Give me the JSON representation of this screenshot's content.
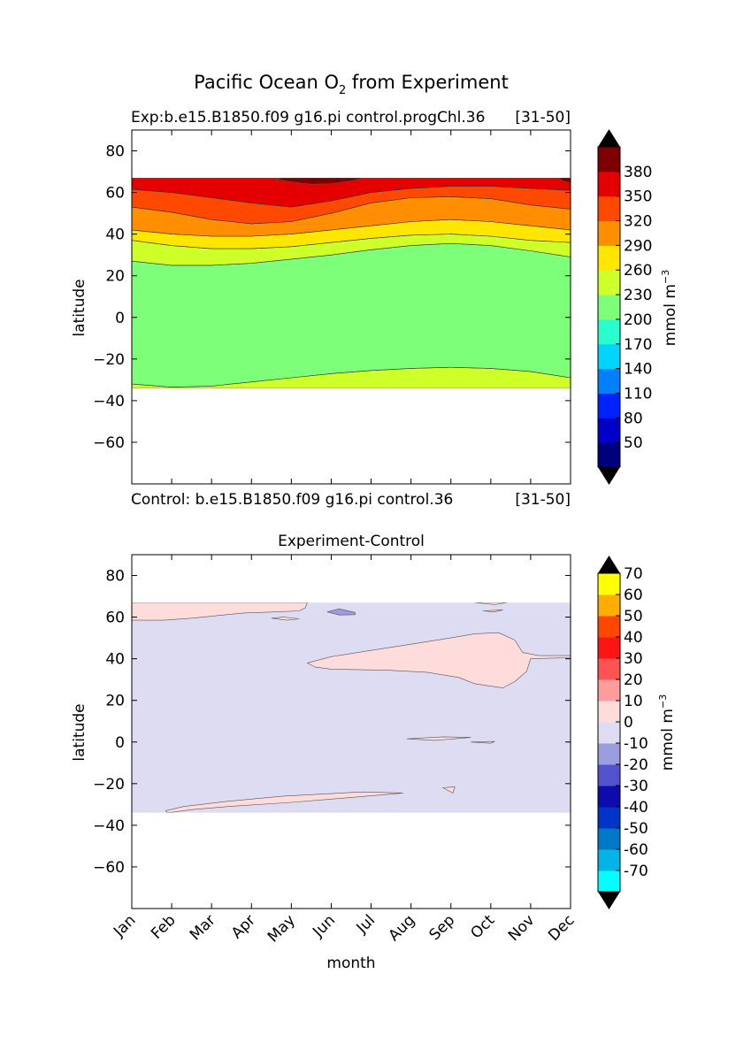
{
  "figure": {
    "title_main": "Pacific Ocean O",
    "title_sub": "2",
    "title_rest": " from Experiment"
  },
  "chart_data": [
    {
      "type": "contourf",
      "title": "Exp:b.e15.B1850.f09 g16.pi control.progChl.36",
      "title_right": "[31-50]",
      "subtitle_below": "Control: b.e15.B1850.f09 g16.pi control.36",
      "subtitle_below_right": "[31-50]",
      "ylabel": "latitude",
      "xlabel": "",
      "xlim": [
        0,
        11
      ],
      "ylim": [
        -80,
        90
      ],
      "yticks": [
        -60,
        -40,
        -20,
        0,
        20,
        40,
        60,
        80
      ],
      "data_lat_range": [
        -34,
        67
      ],
      "colorbar": {
        "label": "mmol m",
        "label_sup": "−3",
        "levels": [
          20,
          50,
          80,
          110,
          140,
          170,
          200,
          230,
          260,
          290,
          320,
          350,
          380,
          410
        ],
        "tick_labels": [
          "50",
          "80",
          "110",
          "140",
          "170",
          "200",
          "230",
          "260",
          "290",
          "320",
          "350",
          "380"
        ],
        "colors": [
          "#00007f",
          "#0000c8",
          "#0022ff",
          "#0080ff",
          "#00d4ff",
          "#29ffce",
          "#7dff7a",
          "#ceff29",
          "#ffe600",
          "#ff8f00",
          "#ff4800",
          "#e50000",
          "#7f0000"
        ],
        "extend_low_color": "#000000",
        "extend_high_color": "#000000"
      },
      "regions": [
        {
          "band": "230",
          "lower": [
            -34,
            -34,
            -34,
            -34,
            -34,
            -34,
            -34,
            -34,
            -34,
            -34,
            -34,
            -34
          ],
          "upper": [
            -32,
            -33.5,
            -33,
            -31,
            -29,
            -27,
            -25.5,
            -24.5,
            -24,
            -24.5,
            -26,
            -29
          ]
        },
        {
          "band": "200",
          "lower": [
            -32,
            -33.5,
            -33,
            -31,
            -29,
            -27,
            -25.5,
            -24.5,
            -24,
            -24.5,
            -26,
            -29
          ],
          "upper": [
            27,
            25,
            25,
            26,
            28,
            30,
            32.5,
            34.5,
            35.5,
            34.5,
            32,
            29
          ]
        },
        {
          "band": "230",
          "lower": [
            27,
            25,
            25,
            26,
            28,
            30,
            32.5,
            34.5,
            35.5,
            34.5,
            32,
            29
          ],
          "upper": [
            37,
            34.5,
            33,
            33,
            34,
            36,
            38,
            39.5,
            40,
            39,
            37,
            36
          ]
        },
        {
          "band": "260",
          "lower": [
            37,
            34.5,
            33,
            33,
            34,
            36,
            38,
            39.5,
            40,
            39,
            37,
            36
          ],
          "upper": [
            42,
            40,
            39,
            39,
            40,
            42,
            44,
            46,
            47,
            46,
            44,
            42
          ]
        },
        {
          "band": "290",
          "lower": [
            42,
            40,
            39,
            39,
            40,
            42,
            44,
            46,
            47,
            46,
            44,
            42
          ],
          "upper": [
            53,
            50.5,
            47,
            45,
            46,
            50,
            55,
            57.5,
            58,
            57,
            54,
            52
          ]
        },
        {
          "band": "320",
          "lower": [
            53,
            50.5,
            47,
            45,
            46,
            50,
            55,
            57.5,
            58,
            57,
            54,
            52
          ],
          "upper": [
            61.5,
            60,
            57.5,
            55,
            53,
            56,
            60,
            62,
            63,
            63,
            62,
            61
          ]
        },
        {
          "band": "350",
          "lower": [
            61.5,
            60,
            57.5,
            55,
            53,
            56,
            60,
            62,
            63,
            63,
            62,
            61
          ],
          "upper": [
            67,
            67,
            67,
            67,
            67,
            67,
            67,
            67,
            67,
            67,
            67,
            67
          ]
        }
      ],
      "patches": [
        {
          "band": "380",
          "points": [
            [
              3.6,
              66.5
            ],
            [
              4.0,
              65.0
            ],
            [
              4.5,
              64.0
            ],
            [
              5.0,
              64.2
            ],
            [
              5.5,
              65.5
            ],
            [
              5.8,
              67
            ],
            [
              3.8,
              67
            ]
          ]
        },
        {
          "band": "380",
          "points": [
            [
              10.7,
              67
            ],
            [
              10.8,
              65.5
            ],
            [
              11,
              64.5
            ],
            [
              11,
              67
            ]
          ]
        }
      ]
    },
    {
      "type": "contourf",
      "title": "Experiment-Control",
      "ylabel": "latitude",
      "xlabel": "month",
      "xlim": [
        0,
        11
      ],
      "ylim": [
        -80,
        90
      ],
      "yticks": [
        -60,
        -40,
        -20,
        0,
        20,
        40,
        60,
        80
      ],
      "xtick_labels": [
        "Jan",
        "Feb",
        "Mar",
        "Apr",
        "May",
        "Jun",
        "Jul",
        "Aug",
        "Sep",
        "Oct",
        "Nov",
        "Dec"
      ],
      "data_lat_range": [
        -34,
        67
      ],
      "colorbar": {
        "label": "mmol m",
        "label_sup": "−3",
        "levels": [
          -80,
          -70,
          -60,
          -50,
          -40,
          -30,
          -20,
          -10,
          0,
          10,
          20,
          30,
          40,
          50,
          60,
          70,
          80
        ],
        "tick_labels": [
          "-70",
          "-60",
          "-50",
          "-40",
          "-30",
          "-20",
          "-10",
          "0",
          "10",
          "20",
          "30",
          "40",
          "50",
          "60",
          "70"
        ],
        "colors": [
          "#00ffff",
          "#00b4e6",
          "#0078c8",
          "#0034c8",
          "#0c0cad",
          "#5252cc",
          "#9c9cdf",
          "#dddcf2",
          "#ffdcdc",
          "#ff9c9c",
          "#ff5252",
          "#ff1414",
          "#ff4700",
          "#ffae00",
          "#ffff00"
        ],
        "extend_low_color": "#000000",
        "extend_high_color": "#000000"
      },
      "background_band": "-10",
      "patches": [
        {
          "band": "0",
          "points": [
            [
              0,
              67
            ],
            [
              4.4,
              67
            ],
            [
              4.35,
              64.5
            ],
            [
              4.2,
              63
            ],
            [
              3.6,
              62.5
            ],
            [
              2.8,
              62
            ],
            [
              1.5,
              59.5
            ],
            [
              0.8,
              58.5
            ],
            [
              0,
              58.5
            ]
          ]
        },
        {
          "band": "0",
          "points": [
            [
              3.5,
              59.5
            ],
            [
              3.9,
              58.5
            ],
            [
              4.2,
              59.2
            ],
            [
              3.8,
              60
            ]
          ]
        },
        {
          "band": "-20",
          "points": [
            [
              4.9,
              62.5
            ],
            [
              5.2,
              61
            ],
            [
              5.6,
              61.2
            ],
            [
              5.6,
              62.2
            ],
            [
              5.2,
              64
            ]
          ]
        },
        {
          "band": "0",
          "points": [
            [
              8.6,
              67
            ],
            [
              9.4,
              67
            ],
            [
              9.1,
              66
            ]
          ]
        },
        {
          "band": "0",
          "points": [
            [
              8.8,
              63
            ],
            [
              9.1,
              62.5
            ],
            [
              9.3,
              63.5
            ]
          ]
        },
        {
          "band": "0",
          "points": [
            [
              4.4,
              38
            ],
            [
              5.0,
              41
            ],
            [
              6.0,
              44
            ],
            [
              7.0,
              47
            ],
            [
              8.0,
              50
            ],
            [
              8.6,
              52
            ],
            [
              9.2,
              52.5
            ],
            [
              9.6,
              49
            ],
            [
              9.8,
              43
            ],
            [
              10.2,
              41.5
            ],
            [
              11,
              41.5
            ],
            [
              11,
              40.5
            ],
            [
              10.0,
              40
            ],
            [
              9.9,
              34
            ],
            [
              9.6,
              29
            ],
            [
              9.3,
              26
            ],
            [
              8.6,
              28
            ],
            [
              8.2,
              31
            ],
            [
              7.4,
              33.5
            ],
            [
              6.4,
              34.5
            ],
            [
              5.0,
              35
            ],
            [
              4.6,
              36
            ]
          ]
        },
        {
          "band": "0",
          "points": [
            [
              6.9,
              1.5
            ],
            [
              7.8,
              2.5
            ],
            [
              8.5,
              2.2
            ],
            [
              7.6,
              0.8
            ]
          ]
        },
        {
          "band": "0",
          "points": [
            [
              8.5,
              0
            ],
            [
              9.1,
              0.3
            ],
            [
              9.0,
              -0.6
            ]
          ]
        },
        {
          "band": "0",
          "points": [
            [
              7.8,
              -22
            ],
            [
              8.1,
              -21.5
            ],
            [
              8.05,
              -24.5
            ]
          ]
        },
        {
          "band": "0",
          "points": [
            [
              0.85,
              -33
            ],
            [
              1.3,
              -31
            ],
            [
              2.4,
              -28.5
            ],
            [
              3.8,
              -26
            ],
            [
              5.8,
              -24
            ],
            [
              6.8,
              -24.5
            ],
            [
              5.6,
              -26.5
            ],
            [
              4.0,
              -29
            ],
            [
              2.4,
              -31
            ],
            [
              1.5,
              -32.5
            ],
            [
              0.9,
              -34
            ]
          ]
        }
      ]
    }
  ]
}
